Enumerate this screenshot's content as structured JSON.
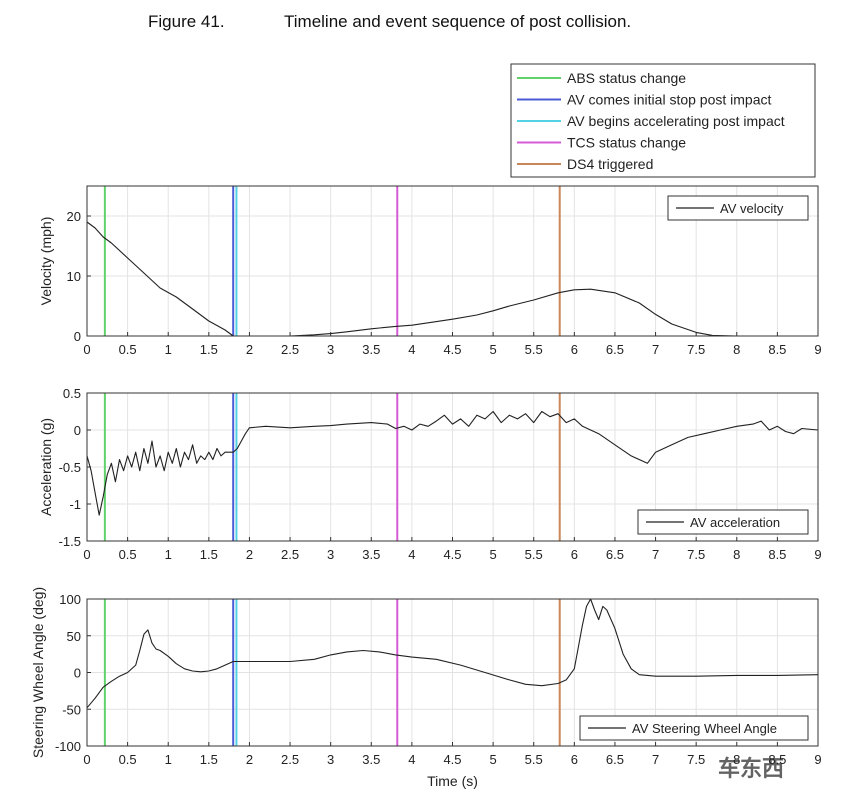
{
  "caption": {
    "number": "Figure 41.",
    "title": "Timeline and event sequence of post collision."
  },
  "event_legend": [
    {
      "label": "ABS status change",
      "color": "#5fd36a",
      "time": 0.22
    },
    {
      "label": "AV comes initial stop post impact",
      "color": "#4a5bd6",
      "time": 1.8
    },
    {
      "label": "AV begins accelerating post impact",
      "color": "#53d2e6",
      "time": 1.84
    },
    {
      "label": "TCS status change",
      "color": "#d45ad6",
      "time": 3.82
    },
    {
      "label": "DS4 triggered",
      "color": "#c9875a",
      "time": 5.82
    }
  ],
  "chart_data": [
    {
      "type": "line",
      "ylabel": "Velocity (mph)",
      "xlim": [
        0,
        9
      ],
      "ylim": [
        0,
        25
      ],
      "yticks": [
        0,
        10,
        20
      ],
      "xticks": [
        "0",
        "0.5",
        "1",
        "1.5",
        "2",
        "2.5",
        "3",
        "3.5",
        "4",
        "4.5",
        "5",
        "5.5",
        "6",
        "6.5",
        "7",
        "7.5",
        "8",
        "8.5",
        "9"
      ],
      "grid": true,
      "legend_position": "top-right",
      "series": [
        {
          "name": "AV velocity",
          "x": [
            0,
            0.1,
            0.2,
            0.3,
            0.5,
            0.7,
            0.9,
            1.1,
            1.3,
            1.5,
            1.7,
            1.8,
            1.9,
            2.5,
            2.8,
            3.0,
            3.2,
            3.5,
            3.8,
            4.0,
            4.2,
            4.5,
            4.8,
            5.0,
            5.2,
            5.5,
            5.8,
            6.0,
            6.2,
            6.5,
            6.8,
            7.0,
            7.2,
            7.5,
            7.7,
            8.0,
            9.0
          ],
          "y": [
            19,
            18,
            16.5,
            15.5,
            13,
            10.5,
            8,
            6.5,
            4.5,
            2.5,
            1,
            0,
            0,
            0,
            0.2,
            0.4,
            0.7,
            1.2,
            1.6,
            1.8,
            2.2,
            2.8,
            3.5,
            4.2,
            5.0,
            6.0,
            7.2,
            7.7,
            7.8,
            7.2,
            5.5,
            3.6,
            2.0,
            0.6,
            0.1,
            0,
            0
          ]
        }
      ]
    },
    {
      "type": "line",
      "ylabel": "Acceleration (g)",
      "xlim": [
        0,
        9
      ],
      "ylim": [
        -1.5,
        0.5
      ],
      "yticks": [
        -1.5,
        -1,
        -0.5,
        0,
        0.5
      ],
      "xticks": [
        "0",
        "0.5",
        "1",
        "1.5",
        "2",
        "2.5",
        "3",
        "3.5",
        "4",
        "4.5",
        "5",
        "5.5",
        "6",
        "6.5",
        "7",
        "7.5",
        "8",
        "8.5",
        "9"
      ],
      "grid": true,
      "legend_position": "bottom-right",
      "series": [
        {
          "name": "AV acceleration",
          "x": [
            0,
            0.05,
            0.1,
            0.15,
            0.2,
            0.25,
            0.3,
            0.35,
            0.4,
            0.45,
            0.5,
            0.55,
            0.6,
            0.65,
            0.7,
            0.75,
            0.8,
            0.85,
            0.9,
            0.95,
            1.0,
            1.05,
            1.1,
            1.15,
            1.2,
            1.25,
            1.3,
            1.35,
            1.4,
            1.45,
            1.5,
            1.55,
            1.6,
            1.65,
            1.7,
            1.75,
            1.8,
            1.85,
            1.9,
            1.95,
            2.0,
            2.2,
            2.5,
            2.8,
            3.0,
            3.2,
            3.5,
            3.7,
            3.8,
            3.9,
            4.0,
            4.1,
            4.2,
            4.3,
            4.4,
            4.5,
            4.6,
            4.7,
            4.8,
            4.9,
            5.0,
            5.1,
            5.2,
            5.3,
            5.4,
            5.5,
            5.6,
            5.7,
            5.8,
            5.9,
            6.0,
            6.1,
            6.2,
            6.3,
            6.5,
            6.7,
            6.9,
            7.0,
            7.2,
            7.4,
            7.6,
            7.8,
            8.0,
            8.2,
            8.3,
            8.4,
            8.5,
            8.6,
            8.7,
            8.8,
            9.0
          ],
          "y": [
            -0.35,
            -0.55,
            -0.85,
            -1.15,
            -0.9,
            -0.6,
            -0.45,
            -0.7,
            -0.4,
            -0.55,
            -0.35,
            -0.5,
            -0.3,
            -0.55,
            -0.25,
            -0.45,
            -0.15,
            -0.5,
            -0.35,
            -0.55,
            -0.3,
            -0.45,
            -0.25,
            -0.5,
            -0.3,
            -0.4,
            -0.2,
            -0.45,
            -0.35,
            -0.4,
            -0.3,
            -0.4,
            -0.25,
            -0.35,
            -0.3,
            -0.3,
            -0.3,
            -0.25,
            -0.15,
            -0.05,
            0.03,
            0.05,
            0.03,
            0.05,
            0.06,
            0.08,
            0.1,
            0.08,
            0.02,
            0.05,
            0.0,
            0.08,
            0.05,
            0.12,
            0.2,
            0.08,
            0.15,
            0.05,
            0.2,
            0.15,
            0.25,
            0.1,
            0.2,
            0.15,
            0.22,
            0.1,
            0.25,
            0.18,
            0.22,
            0.1,
            0.15,
            0.05,
            0.0,
            -0.05,
            -0.2,
            -0.35,
            -0.45,
            -0.3,
            -0.2,
            -0.1,
            -0.05,
            0.0,
            0.05,
            0.08,
            0.12,
            0.0,
            0.05,
            -0.02,
            -0.05,
            0.02,
            0.0
          ]
        }
      ]
    },
    {
      "type": "line",
      "xlabel": "Time (s)",
      "ylabel": "Steering Wheel Angle (deg)",
      "xlim": [
        0,
        9
      ],
      "ylim": [
        -100,
        100
      ],
      "yticks": [
        -100,
        -50,
        0,
        50,
        100
      ],
      "xticks": [
        "0",
        "0.5",
        "1",
        "1.5",
        "2",
        "2.5",
        "3",
        "3.5",
        "4",
        "4.5",
        "5",
        "5.5",
        "6",
        "6.5",
        "7",
        "7.5",
        "8",
        "8.5",
        "9"
      ],
      "grid": true,
      "legend_position": "bottom-right",
      "series": [
        {
          "name": "AV Steering Wheel Angle",
          "x": [
            0,
            0.1,
            0.2,
            0.3,
            0.4,
            0.5,
            0.6,
            0.65,
            0.7,
            0.75,
            0.8,
            0.85,
            0.9,
            1.0,
            1.1,
            1.2,
            1.3,
            1.4,
            1.5,
            1.6,
            1.7,
            1.8,
            1.9,
            2.2,
            2.5,
            2.8,
            3.0,
            3.2,
            3.4,
            3.6,
            3.8,
            4.0,
            4.3,
            4.6,
            4.9,
            5.2,
            5.4,
            5.6,
            5.8,
            5.9,
            6.0,
            6.05,
            6.1,
            6.15,
            6.2,
            6.25,
            6.3,
            6.35,
            6.4,
            6.5,
            6.6,
            6.7,
            6.8,
            7.0,
            7.5,
            8.0,
            8.5,
            9.0
          ],
          "y": [
            -48,
            -35,
            -20,
            -12,
            -5,
            0,
            10,
            30,
            52,
            58,
            40,
            32,
            30,
            22,
            12,
            5,
            2,
            1,
            2,
            5,
            10,
            15,
            15,
            15,
            15,
            18,
            24,
            28,
            30,
            28,
            24,
            21,
            18,
            10,
            0,
            -10,
            -16,
            -18,
            -15,
            -10,
            5,
            35,
            65,
            90,
            100,
            85,
            72,
            90,
            85,
            60,
            25,
            5,
            -3,
            -5,
            -5,
            -4,
            -4,
            -3
          ]
        }
      ]
    }
  ],
  "watermark": "车东西"
}
